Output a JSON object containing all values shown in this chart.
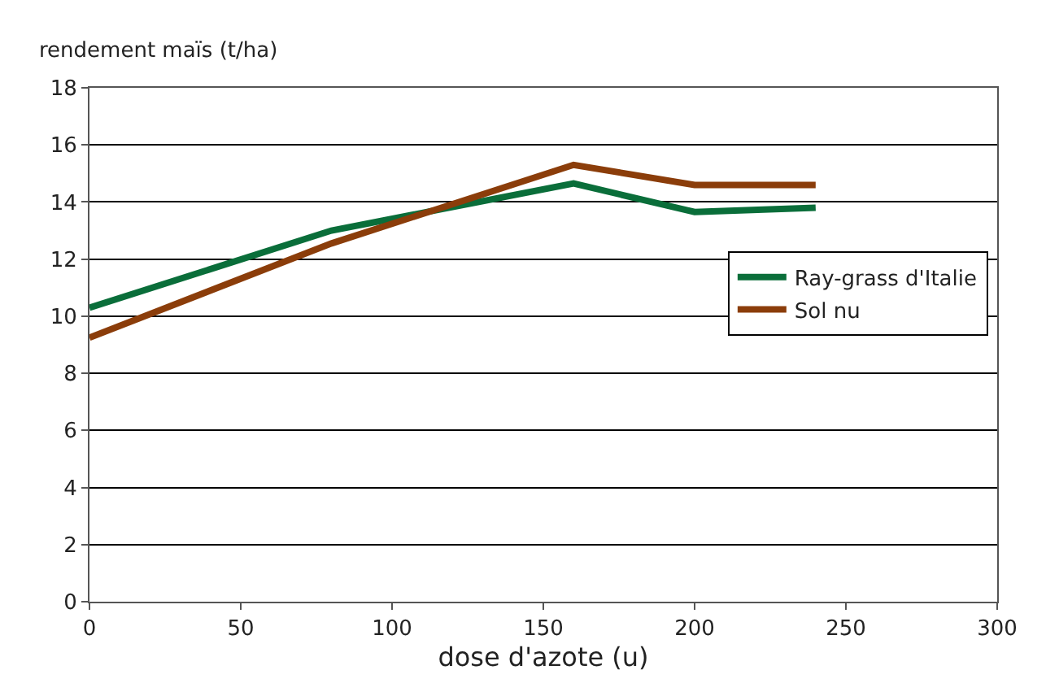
{
  "chart_data": {
    "type": "line",
    "xlabel": "dose d'azote (u)",
    "ylabel": "rendement maïs (t/ha)",
    "x": [
      0,
      80,
      160,
      200,
      240
    ],
    "series": [
      {
        "name": "Ray-grass d'Italie",
        "color": "#0a6e3a",
        "values": [
          10.3,
          13.0,
          14.65,
          13.65,
          13.8
        ]
      },
      {
        "name": "Sol nu",
        "color": "#8b3d0a",
        "values": [
          9.25,
          12.55,
          15.3,
          14.6,
          14.6
        ]
      }
    ],
    "xlim": [
      0,
      300
    ],
    "xticks": [
      0,
      50,
      100,
      150,
      200,
      250,
      300
    ],
    "ylim": [
      0,
      18
    ],
    "yticks": [
      0,
      2,
      4,
      6,
      8,
      10,
      12,
      14,
      16,
      18
    ],
    "grid": "y",
    "legend": "right",
    "marker": "none",
    "line_style": "solid"
  }
}
